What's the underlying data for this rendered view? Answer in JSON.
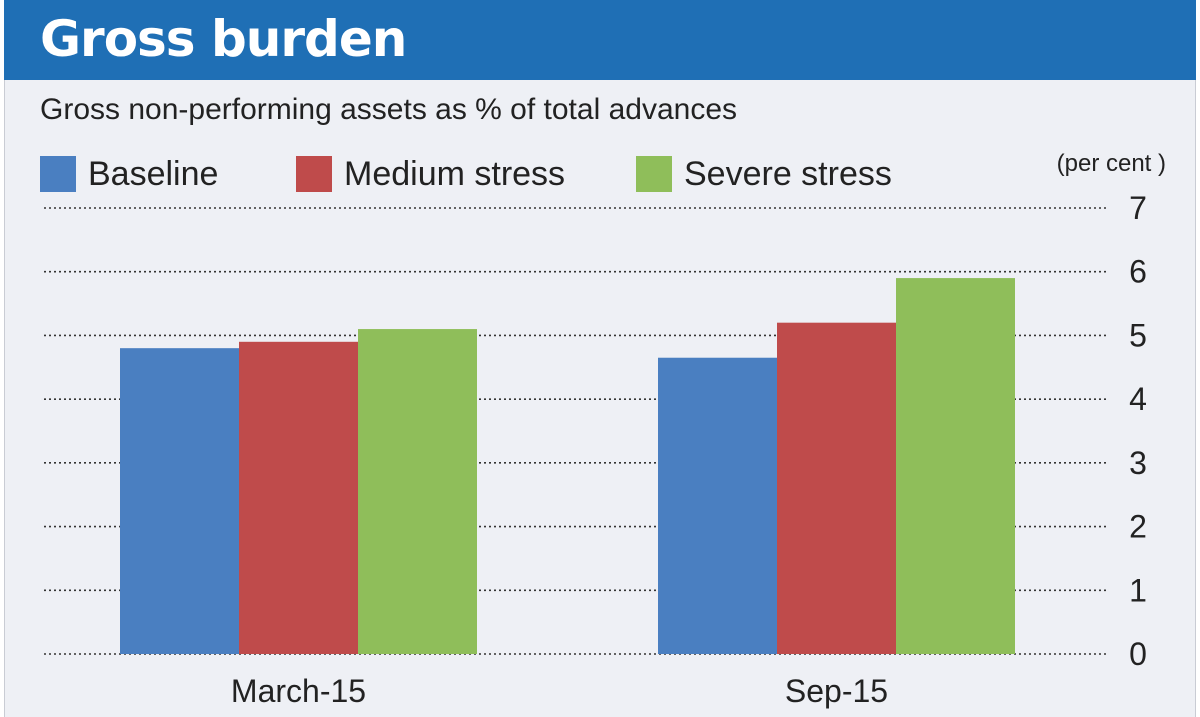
{
  "header": {
    "title": "Gross burden"
  },
  "subtitle": "Gross non-performing assets as % of total advances",
  "unit_label": "(per cent )",
  "legend": [
    {
      "label": "Baseline",
      "color": "#4a7fc1"
    },
    {
      "label": "Medium stress",
      "color": "#bf4b4b"
    },
    {
      "label": "Severe stress",
      "color": "#8fbe5a"
    }
  ],
  "chart_data": {
    "type": "bar",
    "title": "Gross burden",
    "subtitle": "Gross non-performing assets as % of total advances",
    "categories": [
      "March-15",
      "Sep-15"
    ],
    "series": [
      {
        "name": "Baseline",
        "values": [
          4.8,
          4.65
        ],
        "color": "#4a7fc1"
      },
      {
        "name": "Medium stress",
        "values": [
          4.9,
          5.2
        ],
        "color": "#bf4b4b"
      },
      {
        "name": "Severe stress",
        "values": [
          5.1,
          5.9
        ],
        "color": "#8fbe5a"
      }
    ],
    "ylim": [
      0,
      7
    ],
    "yticks": [
      "0",
      "1",
      "2",
      "3",
      "4",
      "5",
      "6",
      "7"
    ],
    "ylabel": "(per cent )",
    "xlabel": "",
    "grid": true,
    "legend_position": "top"
  }
}
